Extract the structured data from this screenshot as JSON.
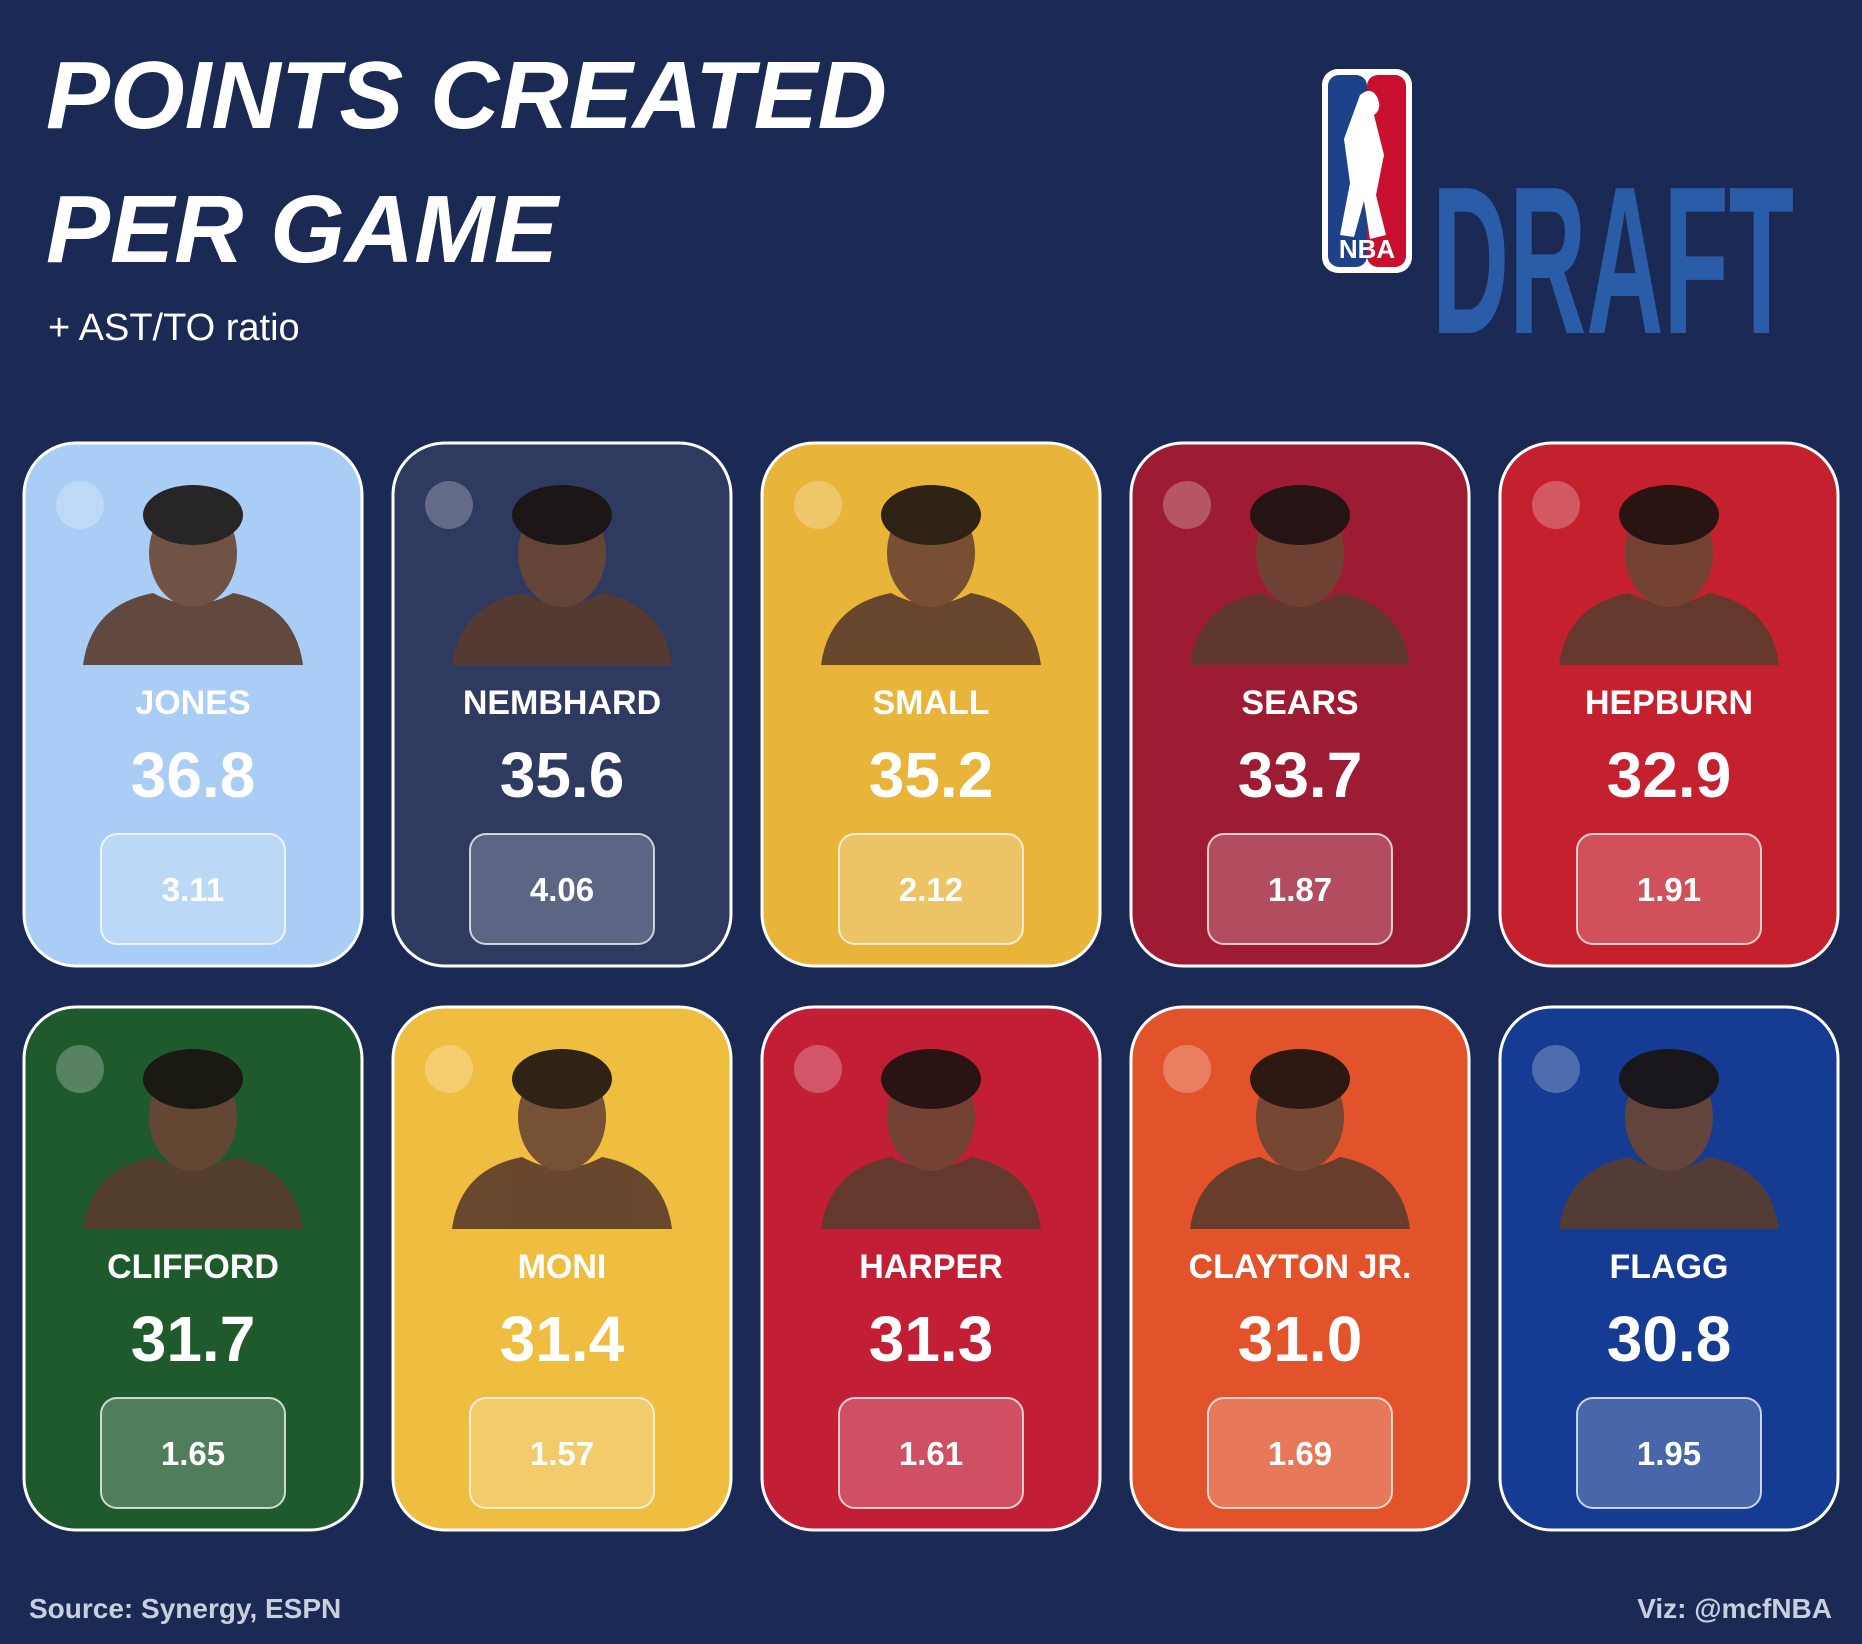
{
  "header": {
    "title_lines": [
      "POINTS CREATED",
      "PER GAME"
    ],
    "subtitle": "+ AST/TO ratio",
    "logo_badge": "NBA",
    "logo_word": "DRAFT"
  },
  "players": [
    {
      "name": "JONES",
      "points": "36.8",
      "ast_to": "3.11",
      "color": "#a9cdf5"
    },
    {
      "name": "NEMBHARD",
      "points": "35.6",
      "ast_to": "4.06",
      "color": "#2f3a60"
    },
    {
      "name": "SMALL",
      "points": "35.2",
      "ast_to": "2.12",
      "color": "#e8b43a"
    },
    {
      "name": "SEARS",
      "points": "33.7",
      "ast_to": "1.87",
      "color": "#9d1c33"
    },
    {
      "name": "HEPBURN",
      "points": "32.9",
      "ast_to": "1.91",
      "color": "#c5202e"
    },
    {
      "name": "CLIFFORD",
      "points": "31.7",
      "ast_to": "1.65",
      "color": "#1f5a2c"
    },
    {
      "name": "MONI",
      "points": "31.4",
      "ast_to": "1.57",
      "color": "#efbd40"
    },
    {
      "name": "HARPER",
      "points": "31.3",
      "ast_to": "1.61",
      "color": "#c21f36"
    },
    {
      "name": "CLAYTON JR.",
      "points": "31.0",
      "ast_to": "1.69",
      "color": "#e2532c"
    },
    {
      "name": "FLAGG",
      "points": "30.8",
      "ast_to": "1.95",
      "color": "#153b93"
    }
  ],
  "footer": {
    "source": "Source: Synergy, ESPN",
    "credit": "Viz: @mcfNBA"
  }
}
